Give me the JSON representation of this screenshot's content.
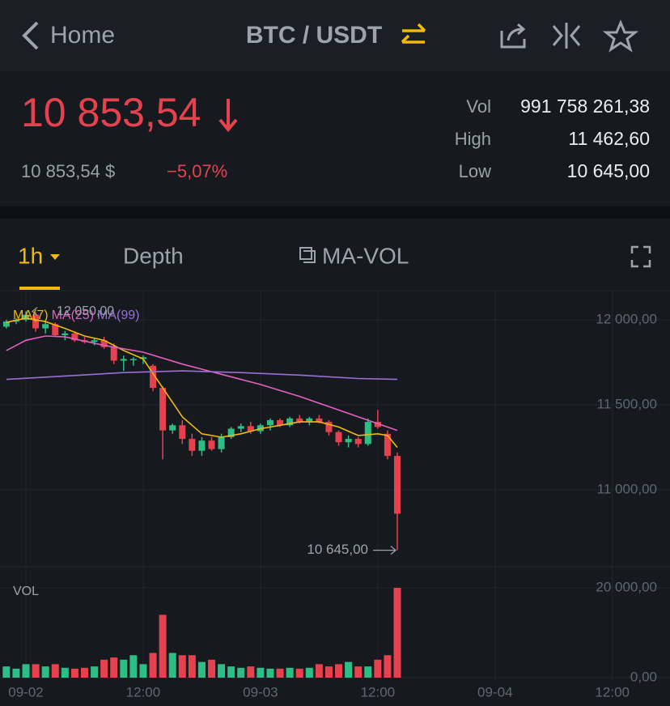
{
  "header": {
    "back": "Home",
    "title": "BTC / USDT"
  },
  "ticker": {
    "price": "10 853,54",
    "fiat": "10 853,54 $",
    "change": "−5,07%"
  },
  "stats": [
    {
      "label": "Vol",
      "value": "991 758 261,38"
    },
    {
      "label": "High",
      "value": "11 462,60"
    },
    {
      "label": "Low",
      "value": "10 645,00"
    }
  ],
  "tabs": [
    "1h",
    "Depth",
    "MA-VOL"
  ],
  "chart_data": [
    {
      "type": "candlestick",
      "up_color": "#2ebd85",
      "down_color": "#e5424f",
      "x": [
        -2,
        -1,
        0,
        1,
        2,
        3,
        4,
        5,
        6,
        7,
        8,
        9,
        10,
        11,
        12,
        13,
        14,
        15,
        16,
        17,
        18,
        19,
        20,
        21,
        22,
        23,
        24,
        25,
        26,
        27,
        28,
        29,
        30,
        31,
        32,
        33,
        34,
        35,
        36,
        37,
        38
      ],
      "open": [
        11960,
        11990,
        12000,
        12030,
        11950,
        11975,
        11910,
        11920,
        11880,
        11870,
        11880,
        11840,
        11760,
        11770,
        11770,
        11730,
        11600,
        11350,
        11380,
        11300,
        11230,
        11290,
        11240,
        11310,
        11360,
        11375,
        11345,
        11380,
        11410,
        11380,
        11420,
        11400,
        11420,
        11400,
        11340,
        11280,
        11300,
        11270,
        11400,
        11330,
        11200
      ],
      "high": [
        12000,
        12010,
        12050,
        12045,
        11990,
        11985,
        11935,
        11930,
        11900,
        11890,
        11900,
        11860,
        11790,
        11780,
        11790,
        11740,
        11610,
        11390,
        11410,
        11330,
        11310,
        11310,
        11330,
        11370,
        11390,
        11400,
        11390,
        11420,
        11420,
        11430,
        11440,
        11430,
        11440,
        11410,
        11350,
        11320,
        11310,
        11420,
        11470,
        11350,
        11220
      ],
      "low": [
        11950,
        11975,
        11990,
        11930,
        11920,
        11900,
        11880,
        11870,
        11860,
        11850,
        11830,
        11740,
        11700,
        11730,
        11740,
        11580,
        11180,
        11330,
        11270,
        11200,
        11200,
        11230,
        11220,
        11300,
        11340,
        11330,
        11330,
        11350,
        11370,
        11370,
        11390,
        11380,
        11390,
        11320,
        11260,
        11250,
        11250,
        11260,
        11360,
        11180,
        10645
      ],
      "close": [
        11990,
        12000,
        12030,
        11950,
        11975,
        11910,
        11920,
        11880,
        11870,
        11880,
        11840,
        11760,
        11770,
        11770,
        11780,
        11600,
        11350,
        11380,
        11300,
        11230,
        11290,
        11240,
        11310,
        11360,
        11375,
        11345,
        11380,
        11410,
        11380,
        11420,
        11400,
        11420,
        11400,
        11340,
        11280,
        11300,
        11270,
        11400,
        11370,
        11200,
        10860
      ],
      "lines": [
        {
          "name": "MA(7)",
          "color": "#f0b90b",
          "x": [
            -2,
            0,
            2,
            4,
            6,
            8,
            10,
            12,
            14,
            16,
            18,
            20,
            22,
            24,
            26,
            28,
            30,
            32,
            34,
            36,
            37,
            38
          ],
          "values": [
            11985,
            12010,
            11990,
            11950,
            11905,
            11880,
            11820,
            11770,
            11600,
            11430,
            11330,
            11310,
            11330,
            11360,
            11380,
            11400,
            11400,
            11370,
            11320,
            11330,
            11320,
            11250
          ]
        },
        {
          "name": "MA(25)",
          "color": "#e45fc0",
          "x": [
            -2,
            0,
            2,
            4,
            8,
            12,
            16,
            20,
            24,
            28,
            32,
            36,
            38
          ],
          "values": [
            11820,
            11880,
            11905,
            11900,
            11850,
            11810,
            11740,
            11680,
            11620,
            11550,
            11470,
            11390,
            11350
          ]
        },
        {
          "name": "MA(99)",
          "color": "#9a6fd8",
          "x": [
            -2,
            4,
            10,
            16,
            22,
            28,
            34,
            38
          ],
          "values": [
            11650,
            11670,
            11690,
            11700,
            11690,
            11675,
            11655,
            11650
          ]
        }
      ],
      "high_label": {
        "value": 12050,
        "label": "12 050,00"
      },
      "low_label": {
        "value": 10645,
        "label": "10 645,00"
      },
      "xlim": [
        -2.65,
        65.9
      ],
      "ylim": [
        10548,
        12167
      ],
      "yticks": [
        {
          "value": 11000,
          "label": "11 000,00"
        },
        {
          "value": 11500,
          "label": "11 500,00"
        },
        {
          "value": 12000,
          "label": "12 000,00"
        }
      ]
    },
    {
      "type": "bar",
      "title": "VOL",
      "x": [
        -2,
        -1,
        0,
        1,
        2,
        3,
        4,
        5,
        6,
        7,
        8,
        9,
        10,
        11,
        12,
        13,
        14,
        15,
        16,
        17,
        18,
        19,
        20,
        21,
        22,
        23,
        24,
        25,
        26,
        27,
        28,
        29,
        30,
        31,
        32,
        33,
        34,
        35,
        36,
        37,
        38
      ],
      "values": [
        2500,
        2000,
        3000,
        3000,
        2500,
        3000,
        2200,
        2000,
        2200,
        2500,
        4000,
        4500,
        4000,
        5000,
        3000,
        5500,
        14000,
        5500,
        5000,
        5000,
        3500,
        4000,
        3000,
        2500,
        2200,
        2500,
        2200,
        2000,
        2000,
        2200,
        2000,
        2200,
        3000,
        2500,
        3000,
        3500,
        2500,
        2500,
        4000,
        5000,
        20000
      ],
      "xlim": [
        -2.65,
        65.9
      ],
      "ylim": [
        0,
        24700
      ],
      "yticks": [
        {
          "value": 0,
          "label": "0,00"
        },
        {
          "value": 20000,
          "label": "20 000,00"
        }
      ],
      "xticks": [
        {
          "value": 0,
          "label": "09-02"
        },
        {
          "value": 12,
          "label": "12:00"
        },
        {
          "value": 24,
          "label": "09-03"
        },
        {
          "value": 36,
          "label": "12:00"
        },
        {
          "value": 48,
          "label": "09-04"
        },
        {
          "value": 60,
          "label": "12:00"
        }
      ]
    }
  ]
}
